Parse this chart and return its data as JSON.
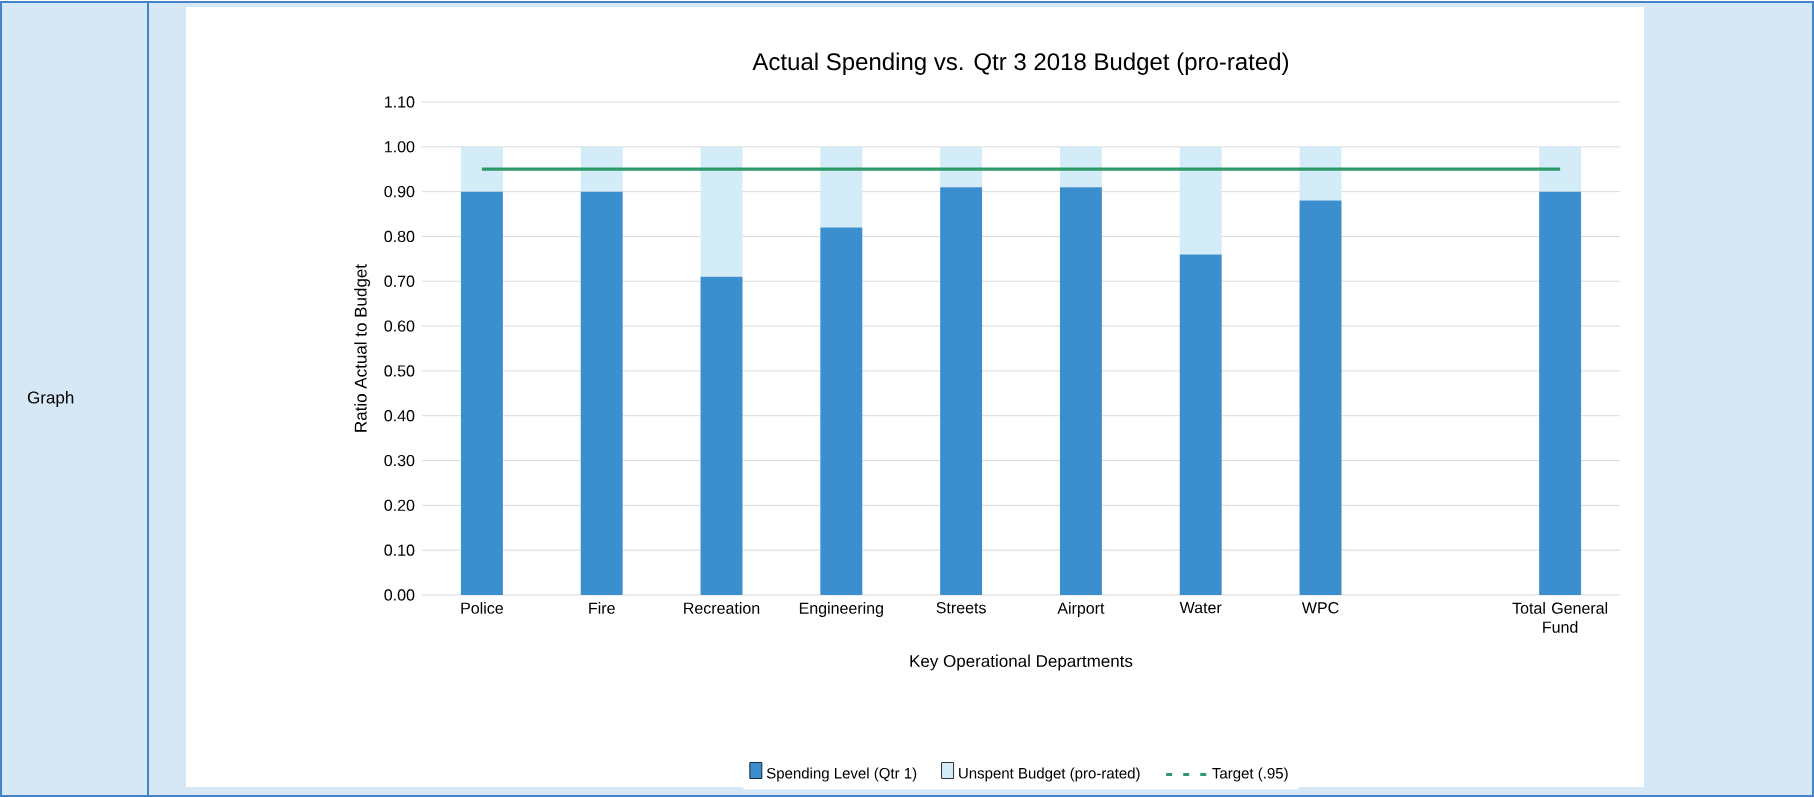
{
  "chart_data": {
    "type": "bar",
    "stacked": true,
    "title": "Actual Spending vs. Qtr 3 2018 Budget  (pro-rated)",
    "xlabel": "Key Operational Departments",
    "ylabel": "Ratio Actual to Budget",
    "categories": [
      "Police",
      "Fire",
      "Recreation",
      "Engineering",
      "Streets",
      "Airport",
      "Water",
      "WPC",
      null,
      "Total General Fund"
    ],
    "series": [
      {
        "name": "Spending Level (Qtr 1)",
        "color": "#3b8fcf",
        "values": [
          0.9,
          0.9,
          0.71,
          0.82,
          0.91,
          0.91,
          0.76,
          0.88,
          null,
          0.9
        ]
      },
      {
        "name": "Unspent Budget (pro-rated)",
        "color": "#d4ebf8",
        "values": [
          0.1,
          0.1,
          0.29,
          0.18,
          0.09,
          0.09,
          0.24,
          0.12,
          null,
          0.1
        ]
      },
      {
        "name": "Target (.95)",
        "color": "#2e9a6a",
        "type": "line",
        "values": [
          0.95,
          0.95,
          0.95,
          0.95,
          0.95,
          0.95,
          0.95,
          0.95,
          0.95,
          0.95
        ]
      }
    ],
    "ylim": [
      0,
      1.1
    ],
    "yticks": [
      {
        "value": 0,
        "label": "0.00"
      },
      {
        "value": 0.1,
        "label": "0.10"
      },
      {
        "value": 0.2,
        "label": "0.20"
      },
      {
        "value": 0.3,
        "label": "0.30"
      },
      {
        "value": 0.4,
        "label": "0.40"
      },
      {
        "value": 0.5,
        "label": "0.50"
      },
      {
        "value": 0.6,
        "label": "0.60"
      },
      {
        "value": 0.7,
        "label": "0.70"
      },
      {
        "value": 0.8,
        "label": "0.80"
      },
      {
        "value": 0.9,
        "label": "0.90"
      },
      {
        "value": 1.0,
        "label": "1.00"
      },
      {
        "value": 1.1,
        "label": "1.10"
      }
    ],
    "grid": "y",
    "legend": "bottom",
    "annotations": [
      "Graph"
    ]
  }
}
